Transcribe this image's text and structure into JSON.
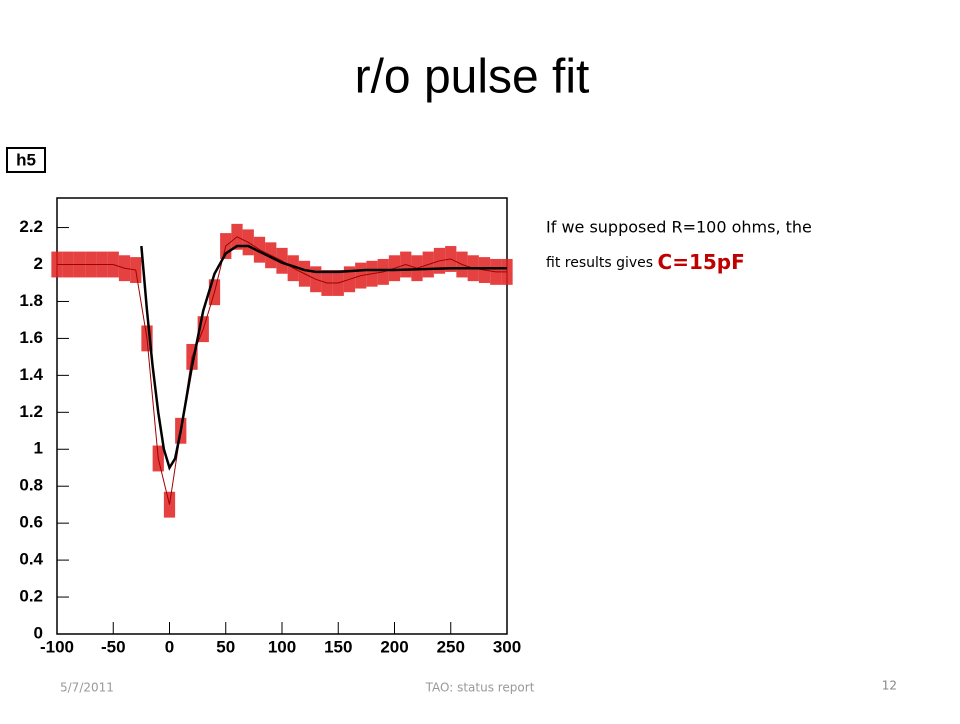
{
  "slide_title": "r/o pulse fit",
  "annotation": {
    "line1": "If we supposed R=100 ohms, the",
    "line2": "fit results gives",
    "highlight": "C=15pF"
  },
  "footer": {
    "date": "5/7/2011",
    "center": "TAO: status report",
    "page": "12"
  },
  "chart_data": {
    "type": "line",
    "title": "h5",
    "xlim": [
      -100,
      300
    ],
    "xticks": [
      -100,
      -50,
      0,
      50,
      100,
      150,
      200,
      250,
      300
    ],
    "ylim": [
      0,
      2.36
    ],
    "yticks": [
      0,
      0.2,
      0.4,
      0.6,
      0.8,
      1,
      1.2,
      1.4,
      1.6,
      1.8,
      2,
      2.2
    ],
    "series": [
      {
        "color": "#e02020",
        "x": [
          -100,
          -90,
          -80,
          -70,
          -60,
          -50,
          -40,
          -30,
          -20,
          -10,
          0,
          10,
          20,
          30,
          40,
          50,
          60,
          70,
          80,
          90,
          100,
          110,
          120,
          130,
          140,
          150,
          160,
          170,
          180,
          190,
          200,
          210,
          220,
          230,
          240,
          250,
          260,
          270,
          280,
          290,
          300
        ],
        "values": [
          2.0,
          2.0,
          2.0,
          2.0,
          2.0,
          2.0,
          1.98,
          1.97,
          1.6,
          0.95,
          0.7,
          1.1,
          1.5,
          1.65,
          1.85,
          2.1,
          2.15,
          2.12,
          2.08,
          2.05,
          2.02,
          1.98,
          1.95,
          1.92,
          1.9,
          1.9,
          1.92,
          1.94,
          1.95,
          1.96,
          1.98,
          2.0,
          1.98,
          2.0,
          2.02,
          2.03,
          2.0,
          1.98,
          1.97,
          1.96,
          1.96
        ],
        "errors": [
          0.07,
          0.07,
          0.07,
          0.07,
          0.07,
          0.07,
          0.07,
          0.07,
          0.07,
          0.07,
          0.07,
          0.07,
          0.07,
          0.07,
          0.07,
          0.07,
          0.07,
          0.07,
          0.07,
          0.07,
          0.07,
          0.07,
          0.07,
          0.07,
          0.07,
          0.07,
          0.07,
          0.07,
          0.07,
          0.07,
          0.07,
          0.07,
          0.07,
          0.07,
          0.07,
          0.07,
          0.07,
          0.07,
          0.07,
          0.07,
          0.07
        ]
      },
      {
        "color": "#000000",
        "x": [
          -25,
          -20,
          -15,
          -10,
          -5,
          0,
          5,
          10,
          20,
          30,
          40,
          50,
          60,
          70,
          80,
          90,
          100,
          110,
          120,
          130,
          140,
          150,
          175,
          200,
          250,
          300
        ],
        "values": [
          2.1,
          1.75,
          1.45,
          1.2,
          1.0,
          0.9,
          0.95,
          1.1,
          1.45,
          1.75,
          1.95,
          2.06,
          2.1,
          2.1,
          2.07,
          2.04,
          2.01,
          1.99,
          1.97,
          1.96,
          1.96,
          1.96,
          1.97,
          1.97,
          1.98,
          1.98
        ]
      }
    ]
  }
}
